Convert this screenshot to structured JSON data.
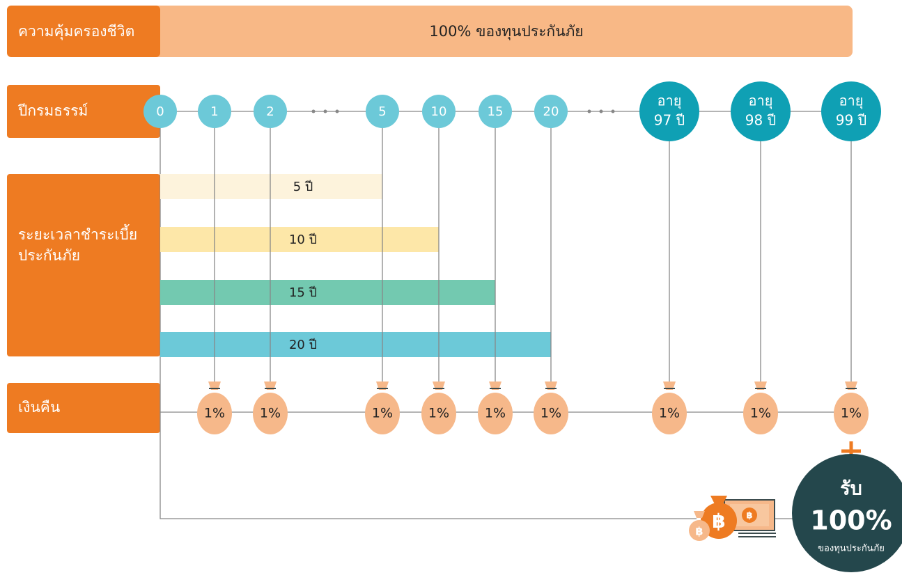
{
  "coverage": {
    "label": "ความคุ้มครองชีวิต",
    "text": "100% ของทุนประกันภัย"
  },
  "policy_year": {
    "label": "ปีกรมธรรม์",
    "nodes": [
      {
        "lines": [
          "0"
        ]
      },
      {
        "lines": [
          "1"
        ]
      },
      {
        "lines": [
          "2"
        ]
      },
      {
        "lines": [
          "5"
        ]
      },
      {
        "lines": [
          "10"
        ]
      },
      {
        "lines": [
          "15"
        ]
      },
      {
        "lines": [
          "20"
        ]
      },
      {
        "lines": [
          "อายุ",
          "97 ปี"
        ]
      },
      {
        "lines": [
          "อายุ",
          "98 ปี"
        ]
      },
      {
        "lines": [
          "อายุ",
          "99 ปี"
        ]
      }
    ]
  },
  "payment_period": {
    "label": [
      "ระยะเวลาชำระเบี้ย",
      "ประกันภัย"
    ],
    "bars": [
      "5 ปี",
      "10 ปี",
      "15 ปี",
      "20 ปี"
    ]
  },
  "refund": {
    "label": "เงินคืน",
    "bags": [
      "1%",
      "1%",
      "1%",
      "1%",
      "1%",
      "1%",
      "1%",
      "1%",
      "1%"
    ]
  },
  "final": {
    "title": "รับ",
    "amount": "100%",
    "caption": "ของทุนประกันภัย"
  }
}
